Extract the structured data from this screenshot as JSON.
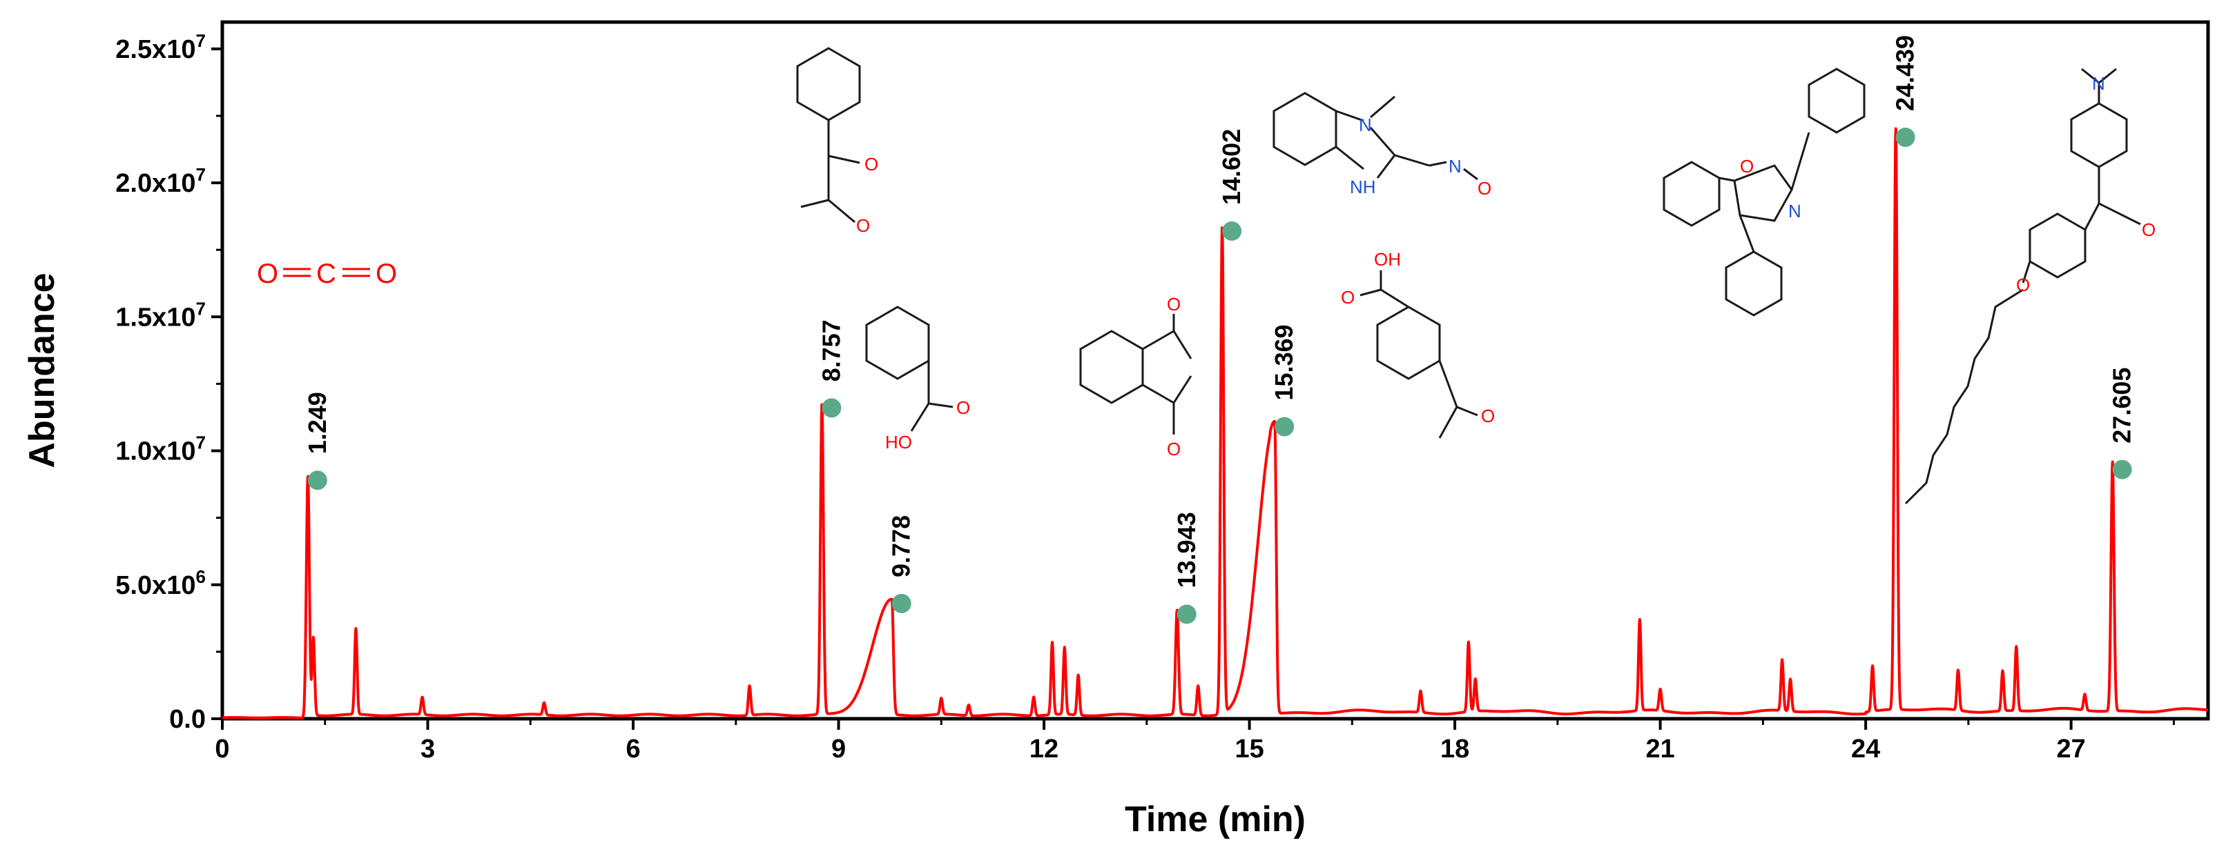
{
  "chart_data": {
    "type": "line",
    "xlabel": "Time (min)",
    "ylabel": "Abundance",
    "xlim": [
      0,
      29
    ],
    "ylim": [
      0,
      26000000
    ],
    "xticks": [
      0,
      3,
      6,
      9,
      12,
      15,
      18,
      21,
      24,
      27
    ],
    "xtick_labels": [
      "0",
      "3",
      "6",
      "9",
      "12",
      "15",
      "18",
      "21",
      "24",
      "27"
    ],
    "yticks": [
      0,
      5000000,
      10000000,
      15000000,
      20000000,
      25000000
    ],
    "ytick_labels": [
      "0.0",
      "5.0x10^6",
      "1.0x10^7",
      "1.5x10^7",
      "2.0x10^7",
      "2.5x10^7"
    ],
    "line_color": "#ff0000",
    "marker_color": "#5aaa8a",
    "grid": false,
    "peaks": [
      {
        "time": 1.249,
        "label": "1.249",
        "abundance": 8900000
      },
      {
        "time": 8.757,
        "label": "8.757",
        "abundance": 11600000
      },
      {
        "time": 9.778,
        "label": "9.778",
        "abundance": 4300000
      },
      {
        "time": 13.943,
        "label": "13.943",
        "abundance": 3900000
      },
      {
        "time": 14.602,
        "label": "14.602",
        "abundance": 18200000
      },
      {
        "time": 15.369,
        "label": "15.369",
        "abundance": 10900000
      },
      {
        "time": 24.439,
        "label": "24.439",
        "abundance": 21700000
      },
      {
        "time": 27.605,
        "label": "27.605",
        "abundance": 9300000
      }
    ],
    "minor_peaks": [
      {
        "time": 1.33,
        "abundance": 2900000
      },
      {
        "time": 1.95,
        "abundance": 3200000
      },
      {
        "time": 2.92,
        "abundance": 650000
      },
      {
        "time": 4.7,
        "abundance": 450000
      },
      {
        "time": 7.7,
        "abundance": 1100000
      },
      {
        "time": 10.5,
        "abundance": 600000
      },
      {
        "time": 10.9,
        "abundance": 400000
      },
      {
        "time": 11.85,
        "abundance": 700000
      },
      {
        "time": 12.12,
        "abundance": 2700000
      },
      {
        "time": 12.3,
        "abundance": 2500000
      },
      {
        "time": 12.5,
        "abundance": 1500000
      },
      {
        "time": 14.25,
        "abundance": 1100000
      },
      {
        "time": 17.5,
        "abundance": 800000
      },
      {
        "time": 18.2,
        "abundance": 2600000
      },
      {
        "time": 18.3,
        "abundance": 1200000
      },
      {
        "time": 20.7,
        "abundance": 3400000
      },
      {
        "time": 21.0,
        "abundance": 800000
      },
      {
        "time": 22.78,
        "abundance": 1900000
      },
      {
        "time": 22.9,
        "abundance": 1200000
      },
      {
        "time": 24.1,
        "abundance": 1700000
      },
      {
        "time": 25.35,
        "abundance": 1500000
      },
      {
        "time": 26.0,
        "abundance": 1500000
      },
      {
        "time": 26.2,
        "abundance": 2400000
      },
      {
        "time": 27.2,
        "abundance": 600000
      }
    ]
  },
  "annotations": {
    "co2_o_left": "O",
    "co2_c": "C",
    "co2_o_right": "O",
    "atom_o": "O",
    "atom_oh": "OH",
    "atom_ho": "HO",
    "atom_n": "N",
    "atom_nh": "NH"
  }
}
